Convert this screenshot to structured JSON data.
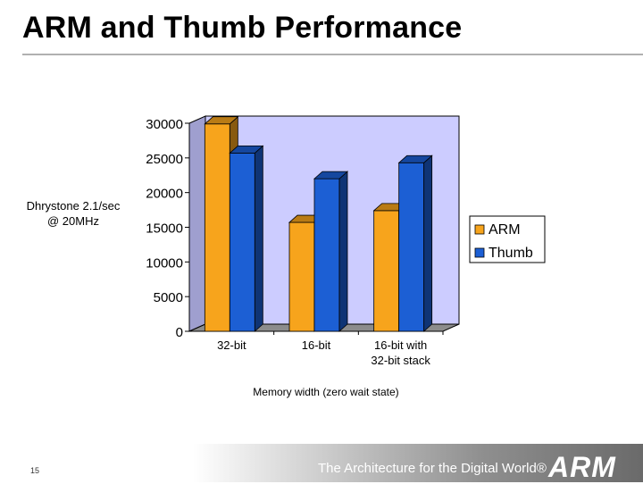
{
  "slide": {
    "title": "ARM and Thumb Performance",
    "page_number": "15",
    "tagline": "The Architecture for the Digital World®",
    "logo_text": "ARM"
  },
  "chart_data": {
    "type": "bar",
    "title": "",
    "ylabel": "Dhrystone 2.1/sec\n@ 20MHz",
    "xlabel": "Memory width (zero wait state)",
    "categories": [
      "32-bit",
      "16-bit",
      "16-bit with\n32-bit stack"
    ],
    "series": [
      {
        "name": "ARM",
        "values": [
          29900,
          15700,
          17400
        ],
        "color": "#f7a41c"
      },
      {
        "name": "Thumb",
        "values": [
          25700,
          22000,
          24300
        ],
        "color": "#1c5fd4"
      }
    ],
    "ylim": [
      0,
      30000
    ],
    "yticks": [
      0,
      5000,
      10000,
      15000,
      20000,
      25000,
      30000
    ],
    "grid": false,
    "legend_position": "right",
    "plot_background": "#ccccff",
    "style": "3d"
  }
}
